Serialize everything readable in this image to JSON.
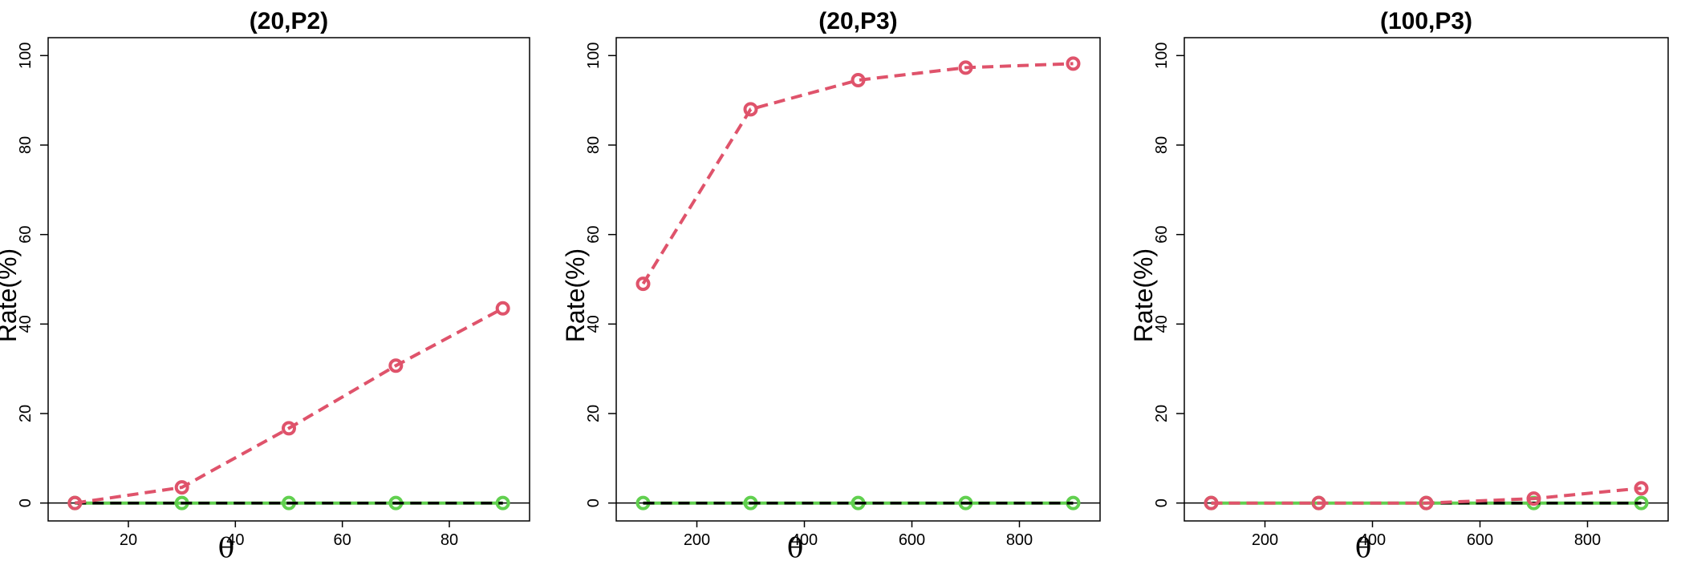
{
  "chart_data": [
    {
      "type": "line",
      "title": "(20,P2)",
      "xlabel": "θ",
      "ylabel": "Rate(%)",
      "xlim": [
        5,
        95
      ],
      "ylim": [
        -4,
        104
      ],
      "xticks": [
        20,
        40,
        60,
        80
      ],
      "yticks": [
        0,
        20,
        40,
        60,
        80,
        100
      ],
      "x": [
        10,
        30,
        50,
        70,
        90
      ],
      "series": [
        {
          "color": "#DF536B",
          "style": "dashed",
          "marker": "open-circle",
          "values": [
            0,
            3.5,
            16.7,
            30.7,
            43.5
          ]
        },
        {
          "color": "#000000",
          "style": "dashed",
          "marker": "none",
          "values": [
            0,
            0,
            0,
            0,
            0
          ]
        },
        {
          "color": "#61D04F",
          "style": "solid",
          "marker": "open-circle",
          "values": [
            0,
            0,
            0,
            0,
            0
          ]
        }
      ],
      "hline": 0,
      "grid": false
    },
    {
      "type": "line",
      "title": "(20,P3)",
      "xlabel": "θ",
      "ylabel": "Rate(%)",
      "xlim": [
        50,
        950
      ],
      "ylim": [
        -4,
        104
      ],
      "xticks": [
        200,
        400,
        600,
        800
      ],
      "yticks": [
        0,
        20,
        40,
        60,
        80,
        100
      ],
      "x": [
        100,
        300,
        500,
        700,
        900
      ],
      "series": [
        {
          "color": "#DF536B",
          "style": "dashed",
          "marker": "open-circle",
          "values": [
            49,
            88,
            94.5,
            97.3,
            98.2
          ]
        },
        {
          "color": "#000000",
          "style": "dashed",
          "marker": "none",
          "values": [
            0,
            0,
            0,
            0,
            0
          ]
        },
        {
          "color": "#61D04F",
          "style": "solid",
          "marker": "open-circle",
          "values": [
            0,
            0,
            0,
            0,
            0
          ]
        }
      ],
      "hline": 0,
      "grid": false
    },
    {
      "type": "line",
      "title": "(100,P3)",
      "xlabel": "θ",
      "ylabel": "Rate(%)",
      "xlim": [
        50,
        950
      ],
      "ylim": [
        -4,
        104
      ],
      "xticks": [
        200,
        400,
        600,
        800
      ],
      "yticks": [
        0,
        20,
        40,
        60,
        80,
        100
      ],
      "x": [
        100,
        300,
        500,
        700,
        900
      ],
      "series": [
        {
          "color": "#DF536B",
          "style": "dashed",
          "marker": "open-circle",
          "values": [
            0,
            0,
            0,
            1,
            3.3
          ]
        },
        {
          "color": "#000000",
          "style": "dashed",
          "marker": "none",
          "values": [
            0,
            0,
            0,
            0,
            0
          ]
        },
        {
          "color": "#61D04F",
          "style": "solid",
          "marker": "open-circle",
          "values": [
            0,
            0,
            0,
            0,
            0
          ]
        }
      ],
      "hline": 0,
      "grid": false
    }
  ]
}
